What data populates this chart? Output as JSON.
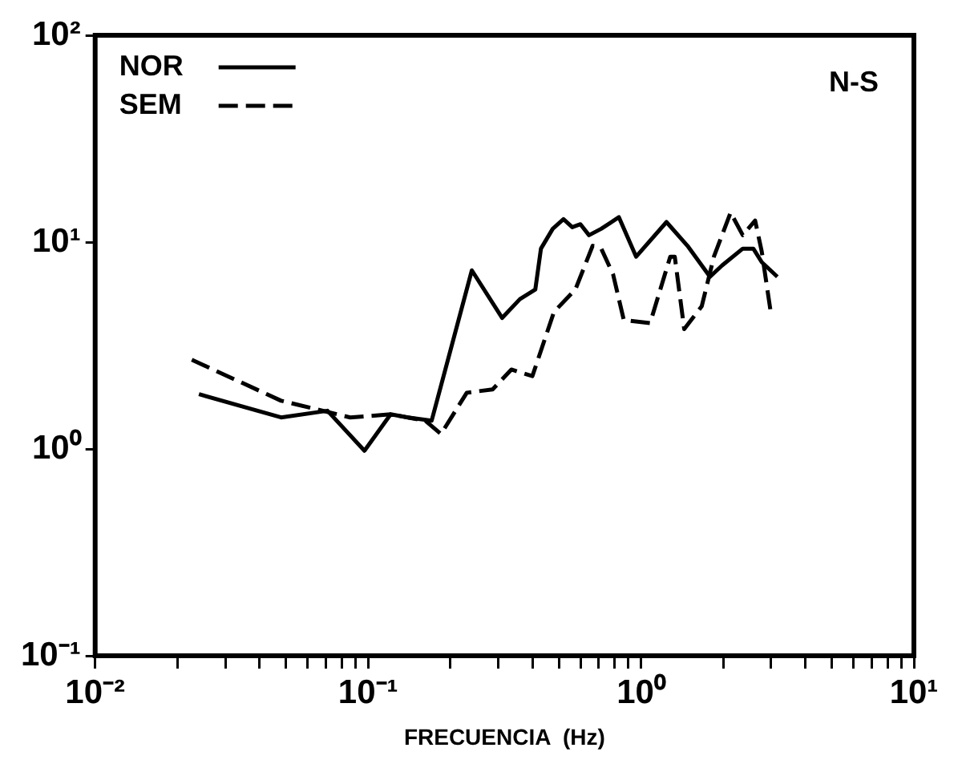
{
  "chart_data": {
    "type": "line",
    "xlabel": "FRECUENCIA  (Hz)",
    "annotations": [
      "N-S"
    ],
    "log": "xy",
    "grid": false,
    "legend": "top left",
    "marker": "none",
    "xlim": [
      0.01,
      10
    ],
    "ylim": [
      0.1,
      100
    ],
    "xticks": [
      {
        "value": 0.01,
        "label": "10⁻²"
      },
      {
        "value": 0.02,
        "label": null
      },
      {
        "value": 0.03,
        "label": null
      },
      {
        "value": 0.04,
        "label": null
      },
      {
        "value": 0.05,
        "label": null
      },
      {
        "value": 0.06,
        "label": null
      },
      {
        "value": 0.07,
        "label": null
      },
      {
        "value": 0.08,
        "label": null
      },
      {
        "value": 0.09,
        "label": null
      },
      {
        "value": 0.1,
        "label": "10⁻¹"
      },
      {
        "value": 0.2,
        "label": null
      },
      {
        "value": 0.3,
        "label": null
      },
      {
        "value": 0.4,
        "label": null
      },
      {
        "value": 0.5,
        "label": null
      },
      {
        "value": 0.6,
        "label": null
      },
      {
        "value": 0.7,
        "label": null
      },
      {
        "value": 0.8,
        "label": null
      },
      {
        "value": 0.9,
        "label": null
      },
      {
        "value": 1,
        "label": "10⁰"
      },
      {
        "value": 2,
        "label": null
      },
      {
        "value": 3,
        "label": null
      },
      {
        "value": 4,
        "label": null
      },
      {
        "value": 5,
        "label": null
      },
      {
        "value": 6,
        "label": null
      },
      {
        "value": 7,
        "label": null
      },
      {
        "value": 8,
        "label": null
      },
      {
        "value": 9,
        "label": null
      },
      {
        "value": 10,
        "label": "10¹"
      }
    ],
    "yticks": [
      {
        "value": 0.1,
        "label": "10⁻¹"
      },
      {
        "value": 1,
        "label": "10⁰"
      },
      {
        "value": 10,
        "label": "10¹"
      },
      {
        "value": 100,
        "label": "10²"
      }
    ],
    "series": [
      {
        "name": "NOR",
        "color": "#000000",
        "line_style": "solid",
        "x": [
          0.024,
          0.048,
          0.071,
          0.097,
          0.121,
          0.14,
          0.171,
          0.24,
          0.31,
          0.36,
          0.41,
          0.43,
          0.475,
          0.52,
          0.56,
          0.6,
          0.645,
          0.715,
          0.83,
          0.96,
          1.24,
          1.48,
          1.79,
          1.98,
          2.36,
          2.58,
          2.77,
          3.16
        ],
        "values": [
          1.84,
          1.42,
          1.53,
          0.98,
          1.47,
          1.42,
          1.37,
          7.3,
          4.3,
          5.3,
          5.9,
          9.3,
          11.6,
          12.9,
          11.8,
          12.2,
          10.8,
          11.6,
          13.2,
          8.5,
          12.5,
          9.6,
          6.8,
          7.7,
          9.3,
          9.3,
          8.0,
          6.8
        ]
      },
      {
        "name": "SEM",
        "color": "#000000",
        "line_style": "dashed",
        "x": [
          0.0226,
          0.048,
          0.086,
          0.121,
          0.162,
          0.185,
          0.23,
          0.286,
          0.335,
          0.4,
          0.48,
          0.575,
          0.665,
          0.715,
          0.79,
          0.865,
          1.08,
          1.28,
          1.33,
          1.44,
          1.67,
          1.85,
          2.13,
          2.36,
          2.62,
          2.77,
          2.98
        ],
        "values": [
          2.7,
          1.71,
          1.42,
          1.47,
          1.37,
          1.18,
          1.87,
          1.94,
          2.42,
          2.25,
          4.6,
          5.9,
          9.6,
          9.3,
          7.0,
          4.2,
          4.06,
          8.5,
          8.5,
          3.8,
          4.9,
          8.5,
          13.9,
          10.8,
          12.7,
          9.0,
          4.7
        ]
      }
    ]
  }
}
